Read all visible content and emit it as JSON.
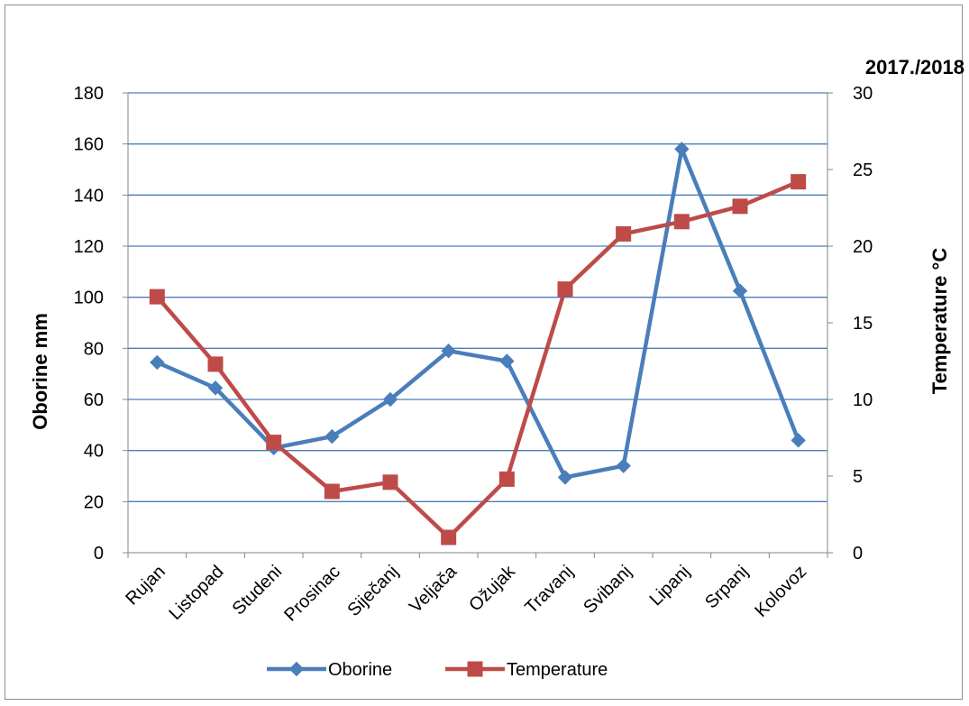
{
  "chart_data": {
    "type": "line",
    "title": "2017./2018",
    "categories": [
      "Rujan",
      "Listopad",
      "Studeni",
      "Prosinac",
      "Siječanj",
      "Veljača",
      "Ožujak",
      "Travanj",
      "Svibanj",
      "Lipanj",
      "Srpanj",
      "Kolovoz"
    ],
    "series": [
      {
        "name": "Oborine",
        "axis": "left",
        "color": "#4a7ebb",
        "marker": "diamond",
        "values": [
          74.5,
          64.5,
          41,
          45.5,
          60,
          79,
          75,
          29.5,
          34,
          158,
          102.5,
          44
        ]
      },
      {
        "name": "Temperature",
        "axis": "right",
        "color": "#be4b48",
        "marker": "square",
        "values": [
          16.7,
          12.3,
          7.2,
          4.0,
          4.6,
          1.0,
          4.8,
          17.2,
          20.8,
          21.6,
          22.6,
          24.2
        ]
      }
    ],
    "ylabel": "Oborine mm",
    "y2label": "Temperature °C",
    "ylim": [
      0,
      180
    ],
    "y2lim": [
      0,
      30
    ],
    "yticks": [
      "0",
      "20",
      "40",
      "60",
      "80",
      "100",
      "120",
      "140",
      "160",
      "180"
    ],
    "y2ticks": [
      "0",
      "5",
      "10",
      "15",
      "20",
      "25",
      "30"
    ],
    "grid": true,
    "legend_position": "bottom",
    "grid_color": "#4a7ebb",
    "axis_color": "#868686"
  }
}
